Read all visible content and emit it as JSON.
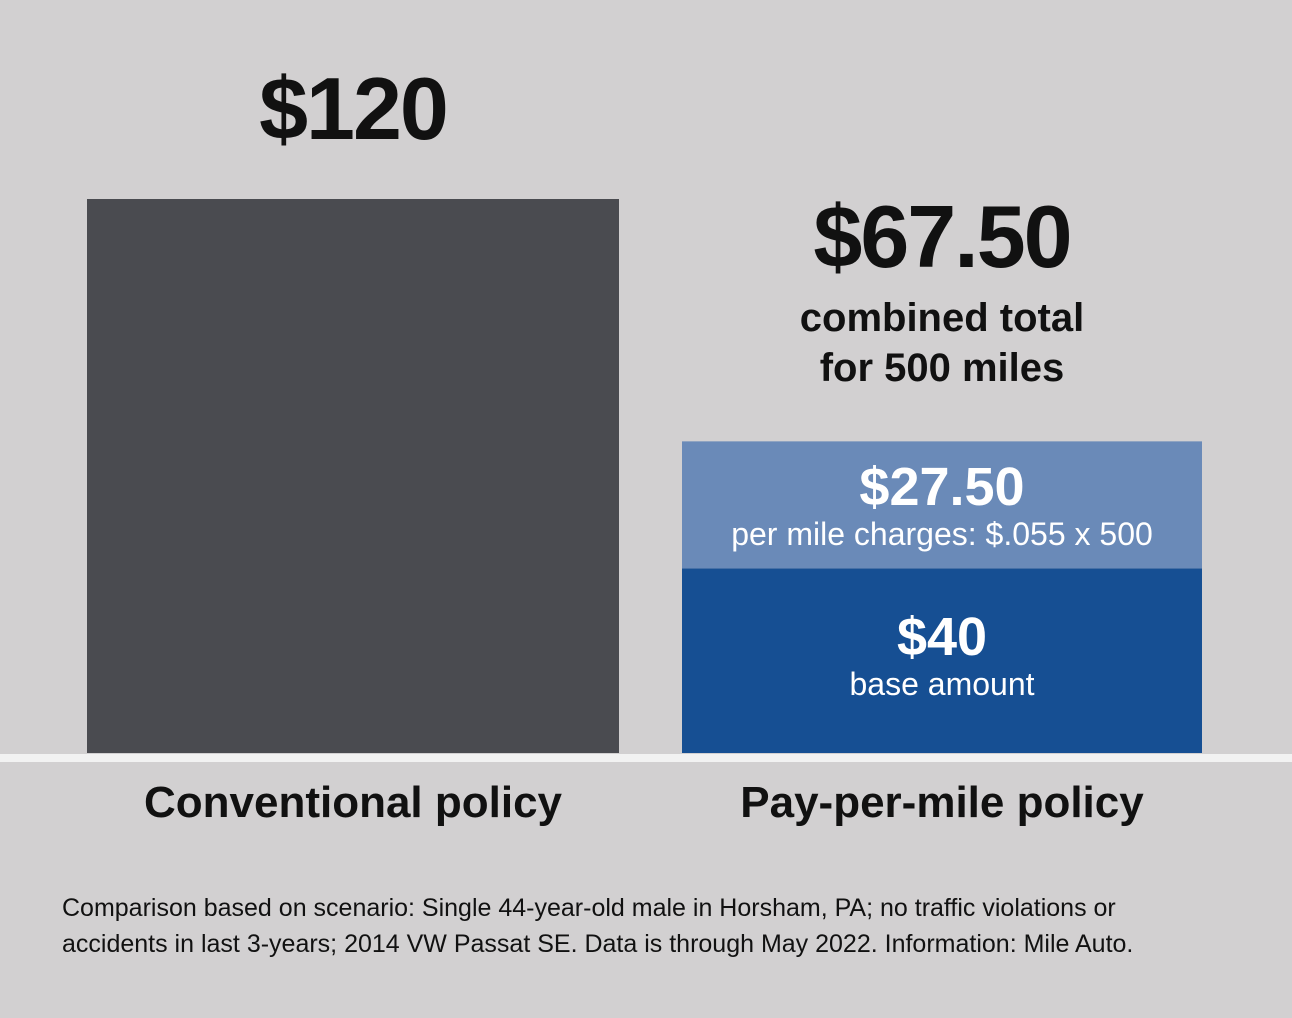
{
  "chart_data": {
    "type": "bar",
    "stacked": true,
    "categories": [
      "Conventional policy",
      "Pay-per-mile policy"
    ],
    "bars": [
      {
        "category": "Conventional policy",
        "total": 120,
        "total_label": "$120",
        "segments": [
          {
            "value": 120,
            "color": "#4a4b50"
          }
        ]
      },
      {
        "category": "Pay-per-mile policy",
        "total": 67.5,
        "total_label": "$67.50",
        "total_caption_1": "combined total",
        "total_caption_2": "for 500 miles",
        "segments": [
          {
            "value": 40,
            "label": "$40",
            "caption": "base amount",
            "color": "#164f93"
          },
          {
            "value": 27.5,
            "label": "$27.50",
            "caption": "per mile charges: $.055 x 500",
            "color": "#6a8ab8"
          }
        ]
      }
    ],
    "ylim": [
      0,
      120
    ],
    "grid": false,
    "background": "#d2d0d1",
    "baseline_color": "#f2f2f2",
    "footnote_1": "Comparison based on scenario: Single 44-year-old male in Horsham, PA; no traffic violations or",
    "footnote_2": "accidents in last 3-years; 2014 VW Passat SE. Data is through May 2022.  Information: Mile Auto."
  }
}
